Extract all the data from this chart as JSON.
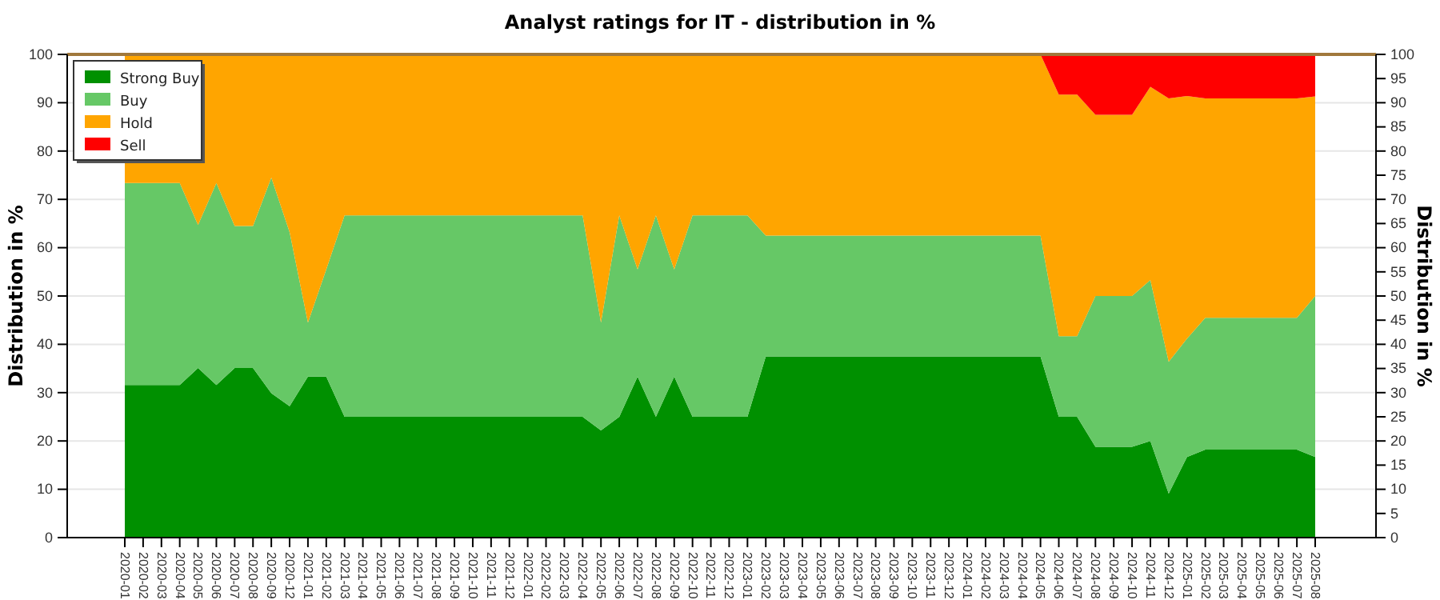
{
  "chart_data": {
    "type": "area",
    "stacked": true,
    "title": "Analyst ratings for IT - distribution in %",
    "ylabel": "Distribution in %",
    "y2label": "Distribution in %",
    "categories": [
      "2020-01",
      "2020-02",
      "2020-03",
      "2020-04",
      "2020-05",
      "2020-06",
      "2020-07",
      "2020-08",
      "2020-09",
      "2020-12",
      "2021-01",
      "2021-02",
      "2021-03",
      "2021-04",
      "2021-05",
      "2021-06",
      "2021-07",
      "2021-08",
      "2021-09",
      "2021-10",
      "2021-11",
      "2021-12",
      "2022-01",
      "2022-02",
      "2022-03",
      "2022-04",
      "2022-05",
      "2022-06",
      "2022-07",
      "2022-08",
      "2022-09",
      "2022-10",
      "2022-11",
      "2022-12",
      "2023-01",
      "2023-02",
      "2023-03",
      "2023-04",
      "2023-05",
      "2023-06",
      "2023-07",
      "2023-08",
      "2023-09",
      "2023-10",
      "2023-11",
      "2023-12",
      "2024-01",
      "2024-02",
      "2024-03",
      "2024-04",
      "2024-05",
      "2024-06",
      "2024-07",
      "2024-08",
      "2024-09",
      "2024-10",
      "2024-11",
      "2024-12",
      "2025-01",
      "2025-02",
      "2025-03",
      "2025-04",
      "2025-05",
      "2025-06",
      "2025-07",
      "2025-08"
    ],
    "series": [
      {
        "name": "Strong Buy",
        "color": "#009000",
        "values": [
          31.6,
          31.6,
          31.6,
          31.6,
          35.1,
          31.6,
          35.1,
          35.1,
          29.9,
          27.2,
          33.3,
          33.3,
          25,
          25,
          25,
          25,
          25,
          25,
          25,
          25,
          25,
          25,
          25,
          25,
          25,
          25,
          22.2,
          25,
          33.3,
          25,
          33.3,
          25,
          25,
          25,
          25,
          37.5,
          37.5,
          37.5,
          37.5,
          37.5,
          37.5,
          37.5,
          37.5,
          37.5,
          37.5,
          37.5,
          37.5,
          37.5,
          37.5,
          37.5,
          37.5,
          25,
          25,
          18.8,
          18.8,
          18.8,
          20,
          9.1,
          16.7,
          18.2,
          18.2,
          18.2,
          18.2,
          18.2,
          18.2,
          16.7
        ]
      },
      {
        "name": "Buy",
        "color": "#66c866",
        "values": [
          41.8,
          41.8,
          41.8,
          41.8,
          29.6,
          41.8,
          29.4,
          29.4,
          44.6,
          36,
          11.2,
          22.2,
          41.7,
          41.7,
          41.7,
          41.7,
          41.7,
          41.7,
          41.7,
          41.7,
          41.7,
          41.7,
          41.7,
          41.7,
          41.7,
          41.7,
          22.3,
          41.7,
          22.2,
          41.7,
          22.2,
          41.7,
          41.7,
          41.7,
          41.7,
          25,
          25,
          25,
          25,
          25,
          25,
          25,
          25,
          25,
          25,
          25,
          25,
          25,
          25,
          25,
          25,
          16.7,
          16.7,
          31.2,
          31.2,
          31.2,
          33.3,
          27.3,
          24.5,
          27.3,
          27.3,
          27.3,
          27.3,
          27.3,
          27.3,
          33.3
        ]
      },
      {
        "name": "Hold",
        "color": "#ffa500",
        "values": [
          26.6,
          26.6,
          26.6,
          26.6,
          35.3,
          26.6,
          35.5,
          35.5,
          25.5,
          36.8,
          55.5,
          44.5,
          33.3,
          33.3,
          33.3,
          33.3,
          33.3,
          33.3,
          33.3,
          33.3,
          33.3,
          33.3,
          33.3,
          33.3,
          33.3,
          33.3,
          55.5,
          33.3,
          44.5,
          33.3,
          44.5,
          33.3,
          33.3,
          33.3,
          33.3,
          37.5,
          37.5,
          37.5,
          37.5,
          37.5,
          37.5,
          37.5,
          37.5,
          37.5,
          37.5,
          37.5,
          37.5,
          37.5,
          37.5,
          37.5,
          37.5,
          50,
          50,
          37.5,
          37.5,
          37.5,
          40,
          54.5,
          50.2,
          45.4,
          45.4,
          45.4,
          45.4,
          45.4,
          45.4,
          41.3
        ]
      },
      {
        "name": "Sell",
        "color": "#ff0000",
        "values": [
          0,
          0,
          0,
          0,
          0,
          0,
          0,
          0,
          0,
          0,
          0,
          0,
          0,
          0,
          0,
          0,
          0,
          0,
          0,
          0,
          0,
          0,
          0,
          0,
          0,
          0,
          0,
          0,
          0,
          0,
          0,
          0,
          0,
          0,
          0,
          0,
          0,
          0,
          0,
          0,
          0,
          0,
          0,
          0,
          0,
          0,
          0,
          0,
          0,
          0,
          0,
          8.3,
          8.3,
          12.5,
          12.5,
          12.5,
          6.7,
          9.1,
          8.6,
          9.1,
          9.1,
          9.1,
          9.1,
          9.1,
          9.1,
          8.7
        ]
      }
    ],
    "ylim": [
      0,
      100
    ],
    "yticks": [
      0,
      10,
      20,
      30,
      40,
      50,
      60,
      70,
      80,
      90,
      100
    ],
    "y2lim": [
      0,
      100
    ],
    "y2ticks": [
      0,
      5,
      10,
      15,
      20,
      25,
      30,
      35,
      40,
      45,
      50,
      55,
      60,
      65,
      70,
      75,
      80,
      85,
      90,
      95,
      100
    ],
    "grid": "y",
    "legend": "top left"
  }
}
